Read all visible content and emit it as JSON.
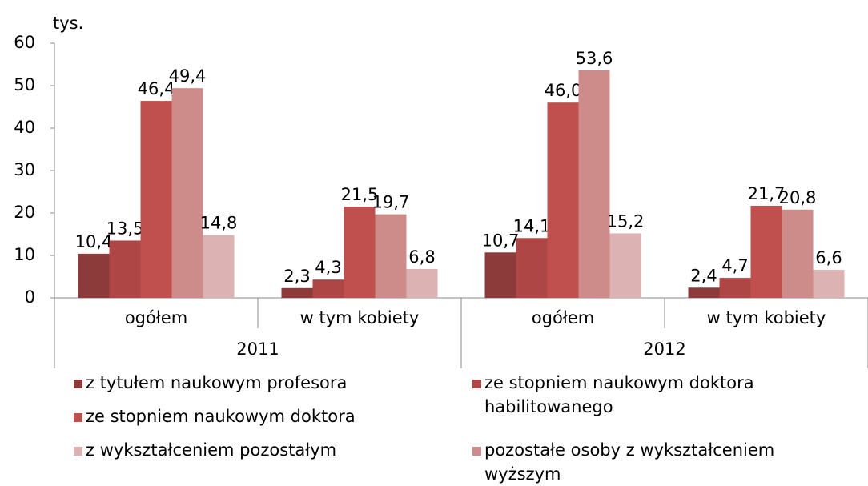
{
  "chart_data": {
    "type": "bar",
    "y_label": "tys.",
    "categories": [
      "ogółem",
      "w tym kobiety",
      "ogółem",
      "w tym kobiety"
    ],
    "groups": [
      "2011",
      "2012"
    ],
    "ylim": [
      0,
      60
    ],
    "yticks": [
      0,
      10,
      20,
      30,
      40,
      50,
      60
    ],
    "series": [
      {
        "name": "z tytułem naukowym profesora",
        "color": "#8c3b3a",
        "values": [
          10.4,
          2.3,
          10.7,
          2.4
        ],
        "value_labels": [
          "10,4",
          "2,3",
          "10,7",
          "2,4"
        ]
      },
      {
        "name": "ze stopniem naukowym doktora habilitowanego",
        "color": "#ad4644",
        "values": [
          13.5,
          4.3,
          14.1,
          4.7
        ],
        "value_labels": [
          "13,5",
          "4,3",
          "14,1",
          "4,7"
        ]
      },
      {
        "name": "ze stopniem naukowym doktora",
        "color": "#c0504d",
        "values": [
          46.4,
          21.5,
          46.0,
          21.7
        ],
        "value_labels": [
          "46,4",
          "21,5",
          "46,0",
          "21,7"
        ]
      },
      {
        "name": "pozostałe osoby z wykształceniem wyższym",
        "color": "#cd8b8a",
        "values": [
          49.4,
          19.7,
          53.6,
          20.8
        ],
        "value_labels": [
          "49,4",
          "19,7",
          "53,6",
          "20,8"
        ]
      },
      {
        "name": "z wykształceniem pozostałym",
        "color": "#dcb3b2",
        "values": [
          14.8,
          6.8,
          15.2,
          6.6
        ],
        "value_labels": [
          "14,8",
          "6,8",
          "15,2",
          "6,6"
        ]
      }
    ]
  }
}
